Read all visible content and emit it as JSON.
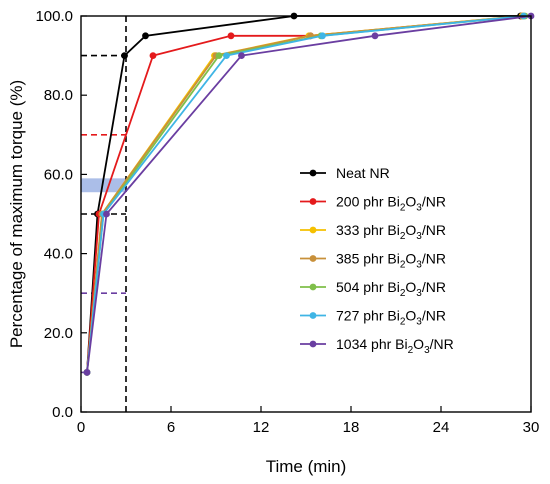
{
  "chart_data": {
    "type": "line",
    "title": "",
    "xlabel": "Time (min)",
    "ylabel": "Percentage of maximum torque (%)",
    "xlim": [
      0,
      30
    ],
    "ylim": [
      0,
      100
    ],
    "xticks": [
      0,
      6,
      12,
      18,
      24,
      30
    ],
    "xtick_labels": [
      "0",
      "6",
      "12",
      "18",
      "24",
      "30"
    ],
    "yticks": [
      0,
      20,
      40,
      60,
      80,
      100
    ],
    "ytick_labels": [
      "0.0",
      "20.0",
      "40.0",
      "60.0",
      "80.0",
      "100.0"
    ],
    "grid": false,
    "legend_position": "right",
    "series": [
      {
        "name": "Neat NR",
        "legend": {
          "prefix": "Neat NR",
          "sub": "",
          "suffix": ""
        },
        "color": "#000000",
        "x": [
          0.4,
          1.1,
          2.9,
          4.3,
          14.2,
          29.3
        ],
        "y": [
          10,
          50,
          90,
          95,
          100,
          100
        ]
      },
      {
        "name": "200 phr Bi2O3/NR",
        "legend": {
          "prefix": "200 phr Bi",
          "sub": "2",
          "suffix": "O",
          "sub2": "3",
          "tail": "/NR"
        },
        "color": "#e41a1c",
        "x": [
          0.4,
          1.2,
          4.8,
          10.0,
          15.3,
          29.4
        ],
        "y": [
          10,
          50,
          90,
          95,
          95,
          100
        ]
      },
      {
        "name": "333 phr Bi2O3/NR",
        "legend": {
          "prefix": "333 phr Bi",
          "sub": "2",
          "suffix": "O",
          "sub2": "3",
          "tail": "/NR"
        },
        "color": "#f5c000",
        "x": [
          0.4,
          1.4,
          8.9,
          15.2,
          29.4
        ],
        "y": [
          10,
          50,
          90,
          95,
          100
        ]
      },
      {
        "name": "385 phr Bi2O3/NR",
        "legend": {
          "prefix": "385 phr Bi",
          "sub": "2",
          "suffix": "O",
          "sub2": "3",
          "tail": "/NR"
        },
        "color": "#c8903a",
        "x": [
          0.4,
          1.4,
          9.0,
          15.3,
          29.5
        ],
        "y": [
          10,
          50,
          90,
          95,
          100
        ]
      },
      {
        "name": "504 phr Bi2O3/NR",
        "legend": {
          "prefix": "504 phr Bi",
          "sub": "2",
          "suffix": "O",
          "sub2": "3",
          "tail": "/NR"
        },
        "color": "#7fbf4a",
        "x": [
          0.4,
          1.5,
          9.2,
          16.0,
          29.6
        ],
        "y": [
          10,
          50,
          90,
          95,
          100
        ]
      },
      {
        "name": "727 phr Bi2O3/NR",
        "legend": {
          "prefix": "727 phr Bi",
          "sub": "2",
          "suffix": "O",
          "sub2": "3",
          "tail": "/NR"
        },
        "color": "#3fb5e5",
        "x": [
          0.4,
          1.5,
          9.7,
          16.1,
          29.5
        ],
        "y": [
          10,
          50,
          90,
          95,
          100
        ]
      },
      {
        "name": "1034 phr Bi2O3/NR",
        "legend": {
          "prefix": "1034 phr Bi",
          "sub": "2",
          "suffix": "O",
          "sub2": "3",
          "tail": "/NR"
        },
        "color": "#6a3ea1",
        "x": [
          0.4,
          1.7,
          10.7,
          19.6,
          30.0
        ],
        "y": [
          10,
          50,
          90,
          95,
          100
        ]
      }
    ],
    "reference_lines": [
      {
        "kind": "vertical",
        "x": 3.0,
        "color": "#000000",
        "dashed": true
      },
      {
        "kind": "horizontal",
        "y": 90,
        "x_to": 3.0,
        "color": "#000000",
        "dashed": true
      },
      {
        "kind": "horizontal",
        "y": 70,
        "x_to": 3.0,
        "color": "#e41a1c",
        "dashed": true
      },
      {
        "kind": "horizontal",
        "y": 50,
        "x_to": 3.0,
        "color": "#000000",
        "dashed": true
      },
      {
        "kind": "horizontal",
        "y": 30,
        "x_to": 3.0,
        "color": "#6a3ea1",
        "dashed": true
      },
      {
        "kind": "horizontal",
        "y": 10,
        "x_to": 0.4,
        "color": "#6a3ea1",
        "dashed": true
      }
    ],
    "shaded_band": {
      "y_from": 55.5,
      "y_to": 59,
      "x_to": 3.0,
      "color": "#8fa8e0"
    }
  }
}
